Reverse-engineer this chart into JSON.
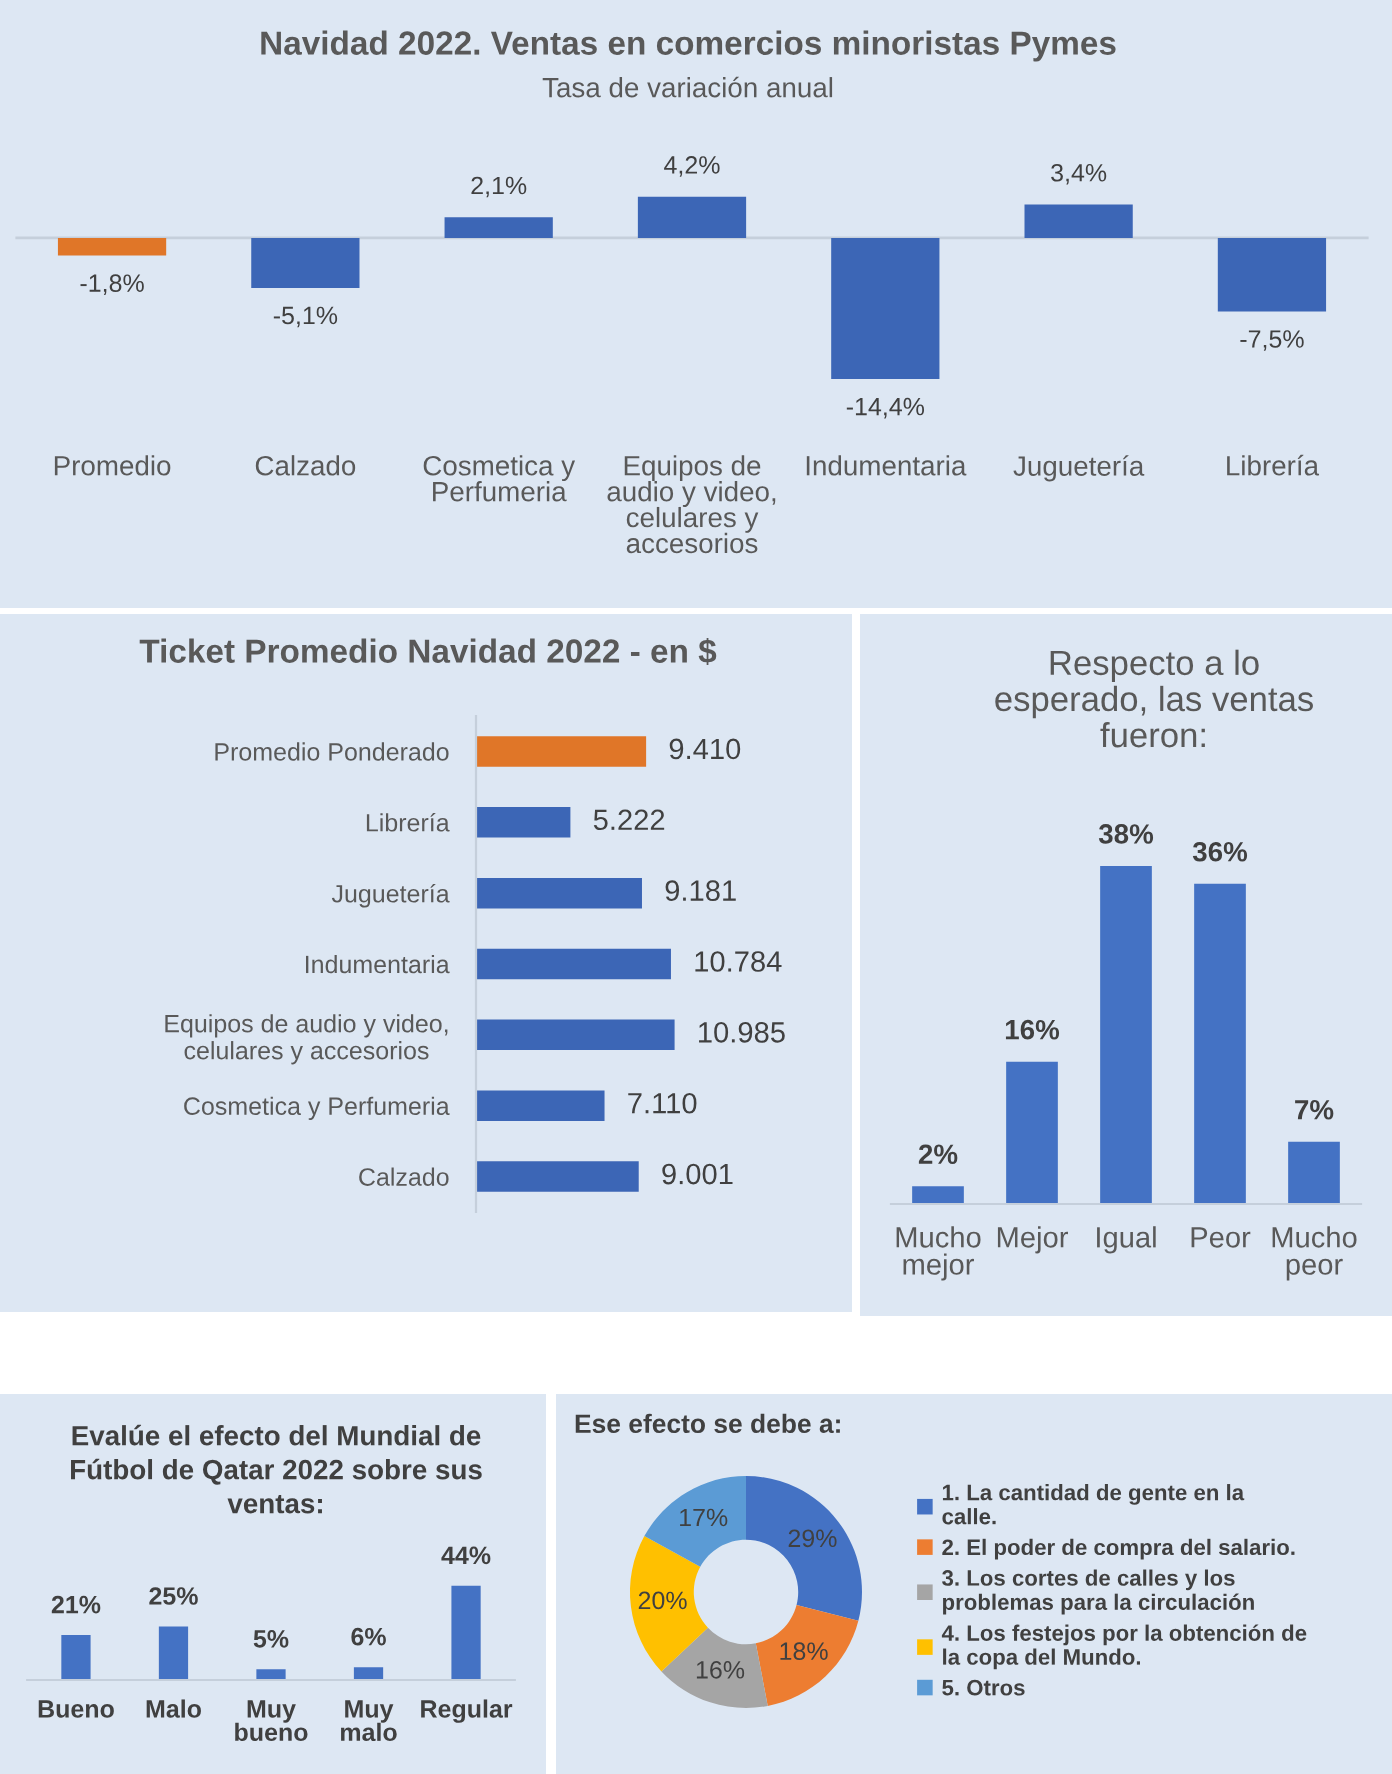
{
  "chart_data": [
    {
      "type": "bar",
      "title": "Navidad 2022. Ventas en comercios minoristas Pymes",
      "subtitle": "Tasa de variación anual",
      "categories": [
        "Promedio",
        "Calzado",
        "Cosmetica y\nPerfumeria",
        "Equipos de\naudio y video,\ncelulares y\naccesorios",
        "Indumentaria",
        "Juguetería",
        "Librería"
      ],
      "values": [
        -1.8,
        -5.1,
        2.1,
        4.2,
        -14.4,
        3.4,
        -7.5
      ],
      "colors": [
        "#e07628",
        "#3c66b6",
        "#3c66b6",
        "#3c66b6",
        "#3c66b6",
        "#3c66b6",
        "#3c66b6"
      ],
      "value_labels": [
        "-1,8%",
        "-5,1%",
        "2,1%",
        "4,2%",
        "-14,4%",
        "3,4%",
        "-7,5%"
      ],
      "tick_labels": "x"
    },
    {
      "type": "bar",
      "orientation": "horizontal",
      "title": "Ticket Promedio Navidad 2022 - en $",
      "categories": [
        "Promedio Ponderado",
        "Librería",
        "Juguetería",
        "Indumentaria",
        "Equipos de audio y video,\ncelulares y accesorios",
        "Cosmetica y Perfumeria",
        "Calzado"
      ],
      "values": [
        9410,
        5222,
        9181,
        10784,
        10985,
        7110,
        9001
      ],
      "colors": [
        "#e07628",
        "#3c66b6",
        "#3c66b6",
        "#3c66b6",
        "#3c66b6",
        "#3c66b6",
        "#3c66b6"
      ],
      "value_labels": [
        "9.410",
        "5.222",
        "9.181",
        "10.784",
        "10.985",
        "7.110",
        "9.001"
      ],
      "tick_labels": "y"
    },
    {
      "type": "bar",
      "title": "Respecto a lo\nesperado, las ventas\nfueron:",
      "categories": [
        "Mucho\nmejor",
        "Mejor",
        "Igual",
        "Peor",
        "Mucho\npeor"
      ],
      "values": [
        2,
        16,
        38,
        36,
        7
      ],
      "color": "#4472c4",
      "value_labels": [
        "2%",
        "16%",
        "38%",
        "36%",
        "7%"
      ],
      "tick_labels": "x"
    },
    {
      "type": "bar",
      "title": "Evalúe el efecto del Mundial de\nFútbol de Qatar 2022 sobre sus\nventas:",
      "categories": [
        "Bueno",
        "Malo",
        "Muy\nbueno",
        "Muy\nmalo",
        "Regular"
      ],
      "values": [
        21,
        25,
        5,
        6,
        44
      ],
      "color": "#4472c4",
      "value_labels": [
        "21%",
        "25%",
        "5%",
        "6%",
        "44%"
      ],
      "tick_labels": "x"
    },
    {
      "type": "donut",
      "title": "Ese efecto se debe a:",
      "categories": [
        "1. La cantidad de gente en la\ncalle.",
        "2. El poder de compra del salario.",
        "3. Los cortes de calles y los\nproblemas para la circulación",
        "4. Los festejos por la obtención de\nla copa del Mundo.",
        "5. Otros"
      ],
      "values": [
        29,
        18,
        16,
        20,
        17
      ],
      "colors": [
        "#4472c4",
        "#ed7d31",
        "#a5a5a5",
        "#ffc000",
        "#5b9bd5"
      ],
      "value_labels": [
        "29%",
        "18%",
        "16%",
        "20%",
        "17%"
      ],
      "legend": "right"
    }
  ]
}
